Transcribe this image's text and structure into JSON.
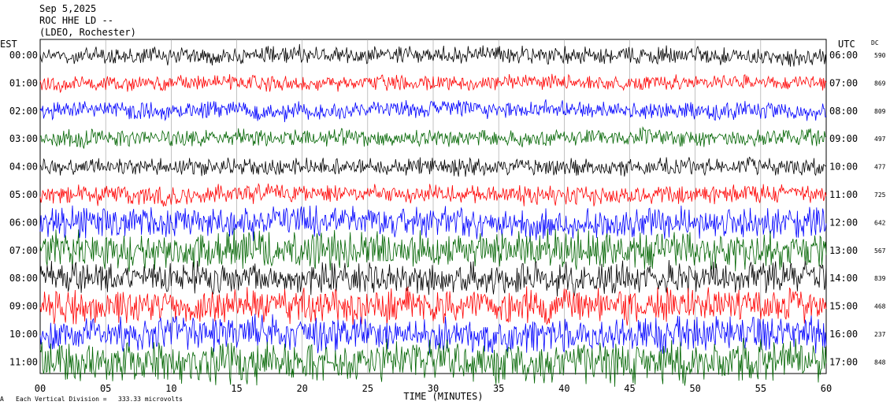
{
  "header": {
    "date": "Sep 5,2025",
    "station": "ROC HHE LD --",
    "network": "(LDEO, Rochester)"
  },
  "labels": {
    "left_axis": "EST",
    "right_axis": "UTC",
    "dc_header": "DC",
    "xlabel": "TIME (MINUTES)",
    "footer_prefix": "Each Vertical Division =",
    "footer_value": "333.33 microvolts"
  },
  "colors": {
    "cycle": [
      "#000000",
      "#ff0000",
      "#0000ff",
      "#006400"
    ],
    "grid": "#999999"
  },
  "chart_data": {
    "type": "line",
    "title": "",
    "xlabel": "TIME (MINUTES)",
    "xlim": [
      0,
      60
    ],
    "x_ticks": [
      "00",
      "05",
      "10",
      "15",
      "20",
      "25",
      "30",
      "35",
      "40",
      "45",
      "50",
      "55",
      "60"
    ],
    "grid": true,
    "series": [
      {
        "est": "00:00",
        "utc": "06:00",
        "dc": "590",
        "color": "#000000",
        "amplitude": 0.45
      },
      {
        "est": "01:00",
        "utc": "07:00",
        "dc": "869",
        "color": "#ff0000",
        "amplitude": 0.4
      },
      {
        "est": "02:00",
        "utc": "08:00",
        "dc": "809",
        "color": "#0000ff",
        "amplitude": 0.45
      },
      {
        "est": "03:00",
        "utc": "09:00",
        "dc": "497",
        "color": "#006400",
        "amplitude": 0.45
      },
      {
        "est": "04:00",
        "utc": "10:00",
        "dc": "477",
        "color": "#000000",
        "amplitude": 0.45
      },
      {
        "est": "05:00",
        "utc": "11:00",
        "dc": "725",
        "color": "#ff0000",
        "amplitude": 0.5
      },
      {
        "est": "06:00",
        "utc": "12:00",
        "dc": "642",
        "color": "#0000ff",
        "amplitude": 0.8
      },
      {
        "est": "07:00",
        "utc": "13:00",
        "dc": "567",
        "color": "#006400",
        "amplitude": 1.0
      },
      {
        "est": "08:00",
        "utc": "14:00",
        "dc": "839",
        "color": "#000000",
        "amplitude": 0.8
      },
      {
        "est": "09:00",
        "utc": "15:00",
        "dc": "468",
        "color": "#ff0000",
        "amplitude": 0.9
      },
      {
        "est": "10:00",
        "utc": "16:00",
        "dc": "237",
        "color": "#0000ff",
        "amplitude": 0.9
      },
      {
        "est": "11:00",
        "utc": "17:00",
        "dc": "848",
        "color": "#006400",
        "amplitude": 1.1
      }
    ]
  }
}
